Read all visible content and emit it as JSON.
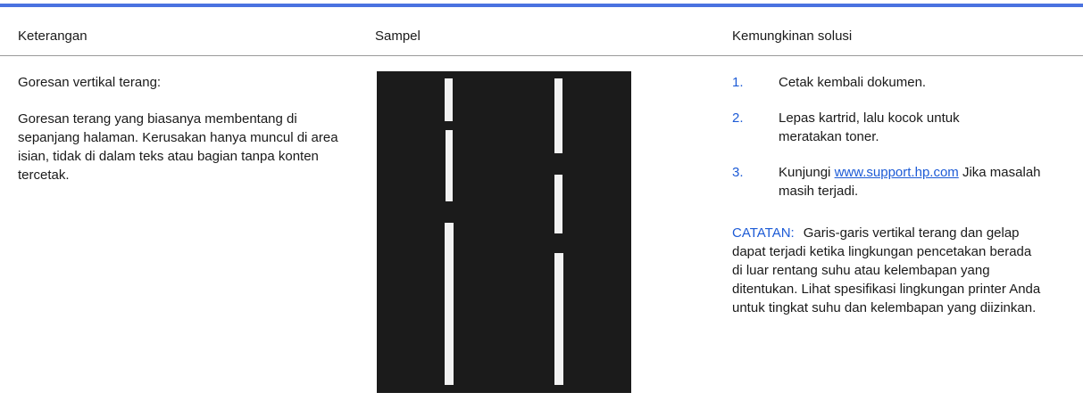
{
  "header": {
    "columns": [
      "Keterangan",
      "Sampel",
      "Kemungkinan solusi"
    ]
  },
  "row": {
    "description": {
      "title": "Goresan vertikal terang:",
      "text": "Goresan terang yang biasanya membentang di sepanjang halaman. Kerusakan hanya muncul di area isian, tidak di dalam teks atau bagian tanpa konten tercetak."
    },
    "solutions": [
      {
        "number": "1.",
        "text": "Cetak kembali dokumen."
      },
      {
        "number": "2.",
        "text": "Lepas kartrid, lalu kocok untuk meratakan toner."
      },
      {
        "number": "3.",
        "before": "Kunjungi",
        "link": "www.support.hp.com",
        "after": "Jika masalah masih terjadi."
      }
    ],
    "note": {
      "label": "CATATAN:",
      "text": "Garis-garis vertikal terang dan gelap dapat terjadi ketika lingkungan pencetakan berada di luar rentang suhu atau kelembapan yang ditentukan. Lihat spesifikasi lingkungan printer Anda untuk tingkat suhu dan kelembapan yang diizinkan."
    }
  }
}
